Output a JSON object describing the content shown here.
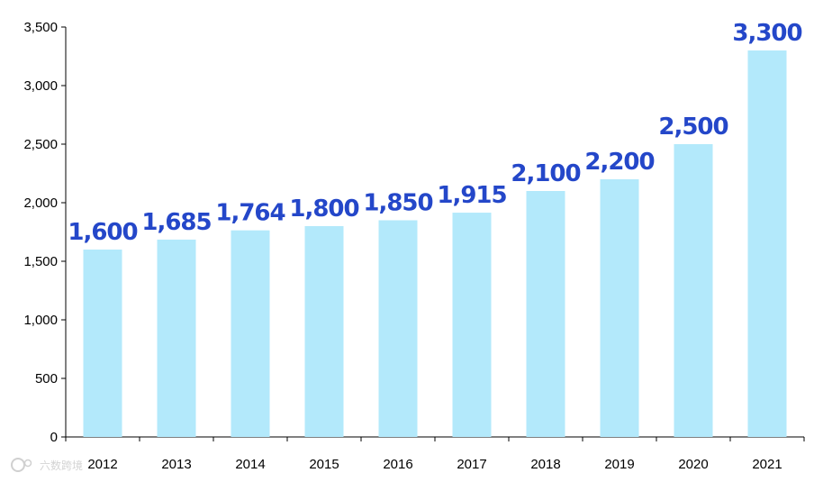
{
  "chart_data": {
    "type": "bar",
    "categories": [
      "2012",
      "2013",
      "2014",
      "2015",
      "2016",
      "2017",
      "2018",
      "2019",
      "2020",
      "2021"
    ],
    "values": [
      1600,
      1685,
      1764,
      1800,
      1850,
      1915,
      2100,
      2200,
      2500,
      3300
    ],
    "value_labels": [
      "1,600",
      "1,685",
      "1,764",
      "1,800",
      "1,850",
      "1,915",
      "2,100",
      "2,200",
      "2,500",
      "3,300"
    ],
    "y_ticks": [
      0,
      500,
      1000,
      1500,
      2000,
      2500,
      3000,
      3500
    ],
    "y_tick_labels": [
      "0",
      "500",
      "1,000",
      "1,500",
      "2,000",
      "2,500",
      "3,000",
      "3,500"
    ],
    "ylim": [
      0,
      3500
    ],
    "title": "",
    "xlabel": "",
    "ylabel": "",
    "grid": false,
    "legend": "none"
  },
  "colors": {
    "bar": "#b3e9fb",
    "data_label": "#2447c9",
    "axis": "#000000"
  },
  "watermark": {
    "text": "六数跨境",
    "icon": "logo-icon"
  }
}
